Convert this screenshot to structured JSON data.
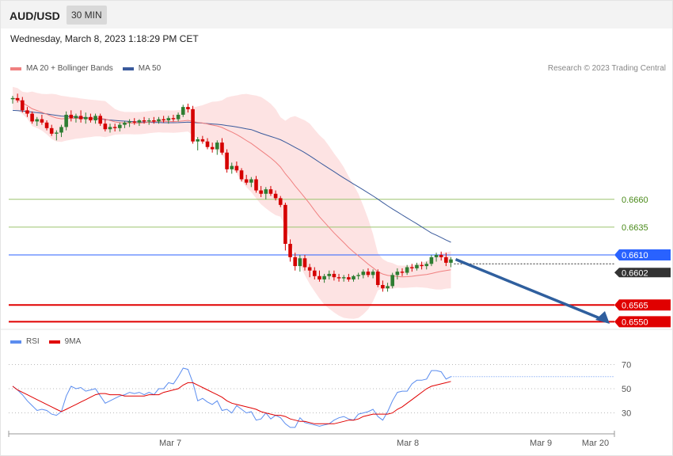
{
  "header": {
    "symbol": "AUD/USD",
    "timeframe": "30 MIN"
  },
  "datetime": "Wednesday, March 8, 2023 1:18:29 PM CET",
  "legend": {
    "ma20_label": "MA 20 + Bollinger Bands",
    "ma50_label": "MA 50",
    "rsi_label": "RSI",
    "rsi_ma_label": "9MA"
  },
  "credit": "Research © 2023 Trading Central",
  "colors": {
    "bull": "#2e7d32",
    "bear": "#d50000",
    "ma20": "#f08080",
    "ma50": "#3a5a9c",
    "bb_fill": "#fde3e3",
    "support": "#e00000",
    "resist": "#9bc46e",
    "pivot": "#2962ff",
    "rsi": "#5b8def",
    "rsi_ma": "#e00000",
    "arrow": "#2f5f9e"
  },
  "chart_data": [
    {
      "type": "candlestick",
      "title": "",
      "x_labels": [
        "Mar 7",
        "Mar 8",
        "Mar 9",
        "Mar 20"
      ],
      "ylim": [
        0.6546,
        0.6768
      ],
      "current_price": "0.6602",
      "levels": [
        {
          "value": 0.666,
          "label": "0.6660",
          "kind": "resistance"
        },
        {
          "value": 0.6635,
          "label": "0.6635",
          "kind": "resistance"
        },
        {
          "value": 0.661,
          "label": "0.6610",
          "kind": "pivot"
        },
        {
          "value": 0.6565,
          "label": "0.6565",
          "kind": "support"
        },
        {
          "value": 0.655,
          "label": "0.6550",
          "kind": "support"
        }
      ],
      "candles": [
        [
          0.675,
          0.6753,
          0.6746,
          0.6751
        ],
        [
          0.6751,
          0.6755,
          0.6747,
          0.6749
        ],
        [
          0.6749,
          0.6752,
          0.6738,
          0.674
        ],
        [
          0.674,
          0.6743,
          0.6734,
          0.6737
        ],
        [
          0.6737,
          0.6739,
          0.6728,
          0.673
        ],
        [
          0.673,
          0.6734,
          0.6726,
          0.6732
        ],
        [
          0.6732,
          0.6736,
          0.6727,
          0.6729
        ],
        [
          0.6729,
          0.6731,
          0.6722,
          0.6724
        ],
        [
          0.6724,
          0.6727,
          0.6717,
          0.6719
        ],
        [
          0.6719,
          0.6722,
          0.6713,
          0.672
        ],
        [
          0.672,
          0.6727,
          0.6716,
          0.6725
        ],
        [
          0.6725,
          0.6739,
          0.6722,
          0.6736
        ],
        [
          0.6736,
          0.674,
          0.673,
          0.6733
        ],
        [
          0.6733,
          0.6737,
          0.6729,
          0.6735
        ],
        [
          0.6735,
          0.674,
          0.6729,
          0.6732
        ],
        [
          0.6732,
          0.6738,
          0.6728,
          0.6734
        ],
        [
          0.6734,
          0.6737,
          0.6729,
          0.6731
        ],
        [
          0.6731,
          0.6737,
          0.6728,
          0.6735
        ],
        [
          0.6735,
          0.6737,
          0.6726,
          0.6728
        ],
        [
          0.6728,
          0.6732,
          0.6721,
          0.6723
        ],
        [
          0.6723,
          0.6728,
          0.672,
          0.6725
        ],
        [
          0.6725,
          0.6728,
          0.6721,
          0.6724
        ],
        [
          0.6724,
          0.6729,
          0.6721,
          0.6727
        ],
        [
          0.6727,
          0.673,
          0.6724,
          0.6729
        ],
        [
          0.6729,
          0.6732,
          0.6725,
          0.673
        ],
        [
          0.673,
          0.6733,
          0.6727,
          0.6729
        ],
        [
          0.6729,
          0.6732,
          0.6726,
          0.6731
        ],
        [
          0.6731,
          0.6734,
          0.6728,
          0.673
        ],
        [
          0.673,
          0.6733,
          0.6727,
          0.6731
        ],
        [
          0.6731,
          0.6734,
          0.6728,
          0.673
        ],
        [
          0.673,
          0.6734,
          0.6728,
          0.6732
        ],
        [
          0.6732,
          0.6735,
          0.6729,
          0.6731
        ],
        [
          0.6731,
          0.6735,
          0.6728,
          0.6733
        ],
        [
          0.6733,
          0.6736,
          0.673,
          0.6732
        ],
        [
          0.6732,
          0.6738,
          0.673,
          0.6736
        ],
        [
          0.6736,
          0.6745,
          0.6734,
          0.6743
        ],
        [
          0.6743,
          0.6746,
          0.6738,
          0.6741
        ],
        [
          0.6741,
          0.6744,
          0.671,
          0.6712
        ],
        [
          0.6712,
          0.6716,
          0.6704,
          0.6714
        ],
        [
          0.6714,
          0.6717,
          0.671,
          0.6712
        ],
        [
          0.6712,
          0.6715,
          0.6705,
          0.6707
        ],
        [
          0.6707,
          0.6711,
          0.6702,
          0.6705
        ],
        [
          0.6705,
          0.6713,
          0.67,
          0.6711
        ],
        [
          0.6711,
          0.6715,
          0.67,
          0.6702
        ],
        [
          0.6702,
          0.6705,
          0.6684,
          0.6687
        ],
        [
          0.6687,
          0.6693,
          0.6683,
          0.669
        ],
        [
          0.669,
          0.6694,
          0.6684,
          0.6686
        ],
        [
          0.6686,
          0.6688,
          0.6676,
          0.6678
        ],
        [
          0.6678,
          0.6682,
          0.6673,
          0.6675
        ],
        [
          0.6675,
          0.668,
          0.6671,
          0.6678
        ],
        [
          0.6678,
          0.6681,
          0.6666,
          0.6668
        ],
        [
          0.6668,
          0.6672,
          0.6662,
          0.6665
        ],
        [
          0.6665,
          0.6671,
          0.666,
          0.6669
        ],
        [
          0.6669,
          0.6672,
          0.6663,
          0.6665
        ],
        [
          0.6665,
          0.6668,
          0.6659,
          0.6661
        ],
        [
          0.6661,
          0.6663,
          0.6653,
          0.6655
        ],
        [
          0.6655,
          0.6657,
          0.6614,
          0.662
        ],
        [
          0.662,
          0.6624,
          0.6604,
          0.6608
        ],
        [
          0.6608,
          0.6612,
          0.6596,
          0.66
        ],
        [
          0.66,
          0.661,
          0.6595,
          0.6607
        ],
        [
          0.6607,
          0.661,
          0.6596,
          0.6599
        ],
        [
          0.6599,
          0.6602,
          0.659,
          0.6596
        ],
        [
          0.6596,
          0.6599,
          0.6588,
          0.6591
        ],
        [
          0.6591,
          0.6596,
          0.6586,
          0.6588
        ],
        [
          0.6588,
          0.6593,
          0.6585,
          0.6591
        ],
        [
          0.6591,
          0.6596,
          0.6588,
          0.6593
        ],
        [
          0.6593,
          0.6596,
          0.6587,
          0.659
        ],
        [
          0.659,
          0.6593,
          0.6586,
          0.6589
        ],
        [
          0.6589,
          0.6592,
          0.6586,
          0.659
        ],
        [
          0.659,
          0.6593,
          0.6586,
          0.6588
        ],
        [
          0.6588,
          0.6592,
          0.6586,
          0.6591
        ],
        [
          0.6591,
          0.6594,
          0.6588,
          0.6592
        ],
        [
          0.6592,
          0.6597,
          0.6589,
          0.6595
        ],
        [
          0.6595,
          0.6598,
          0.659,
          0.6592
        ],
        [
          0.6592,
          0.6597,
          0.6589,
          0.6595
        ],
        [
          0.6595,
          0.6597,
          0.6581,
          0.6583
        ],
        [
          0.6583,
          0.6587,
          0.6577,
          0.658
        ],
        [
          0.658,
          0.6585,
          0.6577,
          0.6582
        ],
        [
          0.6582,
          0.6594,
          0.658,
          0.6592
        ],
        [
          0.6592,
          0.6598,
          0.6588,
          0.6595
        ],
        [
          0.6595,
          0.6598,
          0.6591,
          0.6594
        ],
        [
          0.6594,
          0.6601,
          0.6592,
          0.6599
        ],
        [
          0.6599,
          0.6602,
          0.6595,
          0.6598
        ],
        [
          0.6598,
          0.6603,
          0.6596,
          0.6601
        ],
        [
          0.6601,
          0.6604,
          0.6597,
          0.66
        ],
        [
          0.66,
          0.6604,
          0.6597,
          0.6602
        ],
        [
          0.6602,
          0.661,
          0.66,
          0.6608
        ],
        [
          0.6608,
          0.6612,
          0.6604,
          0.661
        ],
        [
          0.661,
          0.6613,
          0.6605,
          0.6608
        ],
        [
          0.6608,
          0.6612,
          0.66,
          0.6603
        ],
        [
          0.6603,
          0.6608,
          0.6599,
          0.6606
        ]
      ]
    },
    {
      "type": "line",
      "title": "",
      "ylim": [
        14,
        86
      ],
      "y_ticks": [
        30,
        50,
        70
      ],
      "series": [
        {
          "name": "RSI",
          "values": [
            52,
            49,
            45,
            40,
            36,
            32,
            33,
            32,
            29,
            28,
            31,
            44,
            52,
            50,
            51,
            48,
            49,
            50,
            44,
            38,
            40,
            42,
            44,
            45,
            47,
            46,
            47,
            45,
            47,
            45,
            50,
            50,
            55,
            54,
            60,
            67,
            66,
            55,
            40,
            42,
            39,
            37,
            40,
            32,
            33,
            30,
            36,
            33,
            30,
            31,
            24,
            25,
            30,
            25,
            28,
            26,
            21,
            18,
            18,
            26,
            22,
            21,
            20,
            19,
            20,
            21,
            24,
            26,
            27,
            25,
            24,
            29,
            30,
            31,
            33,
            27,
            24,
            31,
            40,
            47,
            48,
            48,
            54,
            57,
            57,
            58,
            65,
            65,
            64,
            58,
            60
          ]
        },
        {
          "name": "9MA",
          "values": [
            52,
            49,
            47,
            45,
            43,
            41,
            39,
            37,
            35,
            33,
            31,
            33,
            35,
            37,
            39,
            41,
            43,
            45,
            46,
            46,
            45,
            45,
            45,
            44,
            44,
            44,
            44,
            44,
            45,
            45,
            45,
            47,
            48,
            49,
            50,
            53,
            55,
            55,
            53,
            51,
            49,
            47,
            45,
            43,
            40,
            38,
            37,
            36,
            35,
            34,
            33,
            31,
            30,
            29,
            28,
            28,
            27,
            25,
            24,
            23,
            23,
            22,
            21,
            21,
            21,
            21,
            21,
            22,
            23,
            24,
            24,
            25,
            27,
            28,
            29,
            29,
            29,
            29,
            30,
            33,
            35,
            38,
            41,
            44,
            47,
            50,
            52,
            53,
            54,
            55,
            56
          ]
        }
      ]
    }
  ]
}
